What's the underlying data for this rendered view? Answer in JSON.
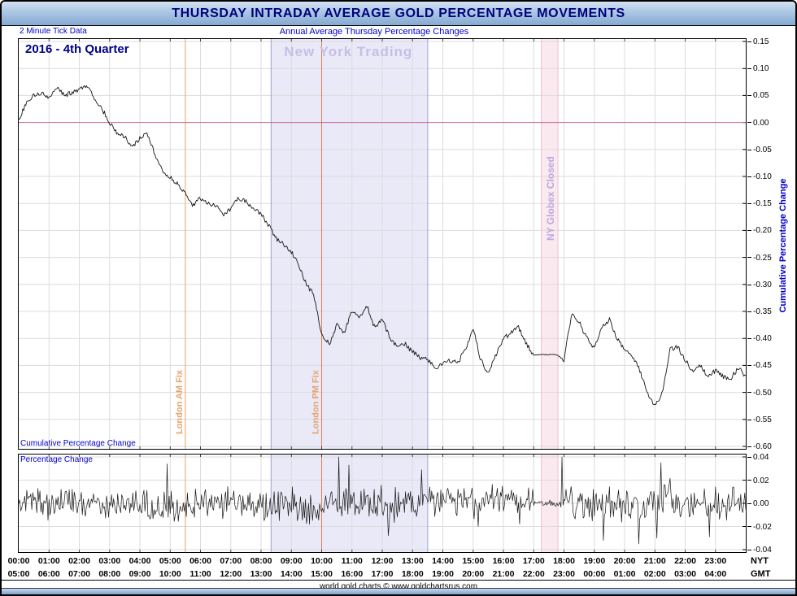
{
  "header": {
    "title": "THURSDAY INTRADAY AVERAGE GOLD PERCENTAGE MOVEMENTS",
    "left_note": "2 Minute Tick Data",
    "subtitle": "Annual Average Thursday Percentage Changes"
  },
  "main_chart": {
    "corner_label": "2016 - 4th Quarter",
    "bottom_label": "Cumulative Percentage Change",
    "right_axis_label": "Cumulative Percentage Change"
  },
  "bottom_chart": {
    "label": "Percentage Change"
  },
  "annotations": {
    "ny_trading": {
      "label": "New York Trading",
      "start_hour": 8.33,
      "end_hour": 13.5,
      "fill": "#e9e9f8",
      "edge": "#9aa2d8",
      "label_color": "#c6bfe6"
    },
    "london_am_fix": {
      "label": "London AM Fix",
      "hour": 5.5,
      "color": "#e8a269"
    },
    "london_pm_fix": {
      "label": "London PM Fix",
      "hour": 10.0,
      "color": "#dd8050"
    },
    "ny_globex_closed": {
      "label": "NY Globex Closed",
      "start_hour": 17.25,
      "end_hour": 17.8,
      "fill": "#fbe9f0",
      "edge": "#f0bcd0",
      "label_color": "#b9a9dd"
    }
  },
  "axes": {
    "nyt_caption": "NYT",
    "gmt_caption": "GMT",
    "nyt": [
      "00:00",
      "01:00",
      "02:00",
      "03:00",
      "04:00",
      "05:00",
      "06:00",
      "07:00",
      "08:00",
      "09:00",
      "10:00",
      "11:00",
      "12:00",
      "13:00",
      "14:00",
      "15:00",
      "16:00",
      "17:00",
      "18:00",
      "19:00",
      "20:00",
      "21:00",
      "22:00",
      "23:00"
    ],
    "gmt": [
      "05:00",
      "06:00",
      "07:00",
      "08:00",
      "09:00",
      "10:00",
      "11:00",
      "12:00",
      "13:00",
      "14:00",
      "15:00",
      "16:00",
      "17:00",
      "18:00",
      "19:00",
      "20:00",
      "21:00",
      "22:00",
      "23:00",
      "00:00",
      "01:00",
      "02:00",
      "03:00",
      "04:00"
    ]
  },
  "footer": {
    "text": "world gold charts © www.goldchartsrus.com"
  },
  "colors": {
    "accent_text": "#0000cc",
    "title_text": "#00007a",
    "zero_line": "#cc6699",
    "series": "#161616",
    "grid": "#dcdcdc"
  },
  "chart_data": [
    {
      "type": "line",
      "name": "cumulative_percentage_change",
      "title": "Cumulative Percentage Change",
      "x_unit": "hour_nyt",
      "x_start": 0,
      "x_end": 24,
      "x_step": 0.25,
      "ylim": [
        -0.6,
        0.15
      ],
      "yticks": [
        0.15,
        0.1,
        0.05,
        0.0,
        -0.05,
        -0.1,
        -0.15,
        -0.2,
        -0.25,
        -0.3,
        -0.35,
        -0.4,
        -0.45,
        -0.5,
        -0.55,
        -0.6
      ],
      "values": [
        0.005,
        0.035,
        0.05,
        0.055,
        0.045,
        0.065,
        0.05,
        0.055,
        0.06,
        0.07,
        0.045,
        0.025,
        0.0,
        -0.02,
        -0.025,
        -0.045,
        -0.03,
        -0.02,
        -0.06,
        -0.09,
        -0.1,
        -0.115,
        -0.13,
        -0.155,
        -0.14,
        -0.15,
        -0.155,
        -0.17,
        -0.16,
        -0.14,
        -0.145,
        -0.16,
        -0.17,
        -0.19,
        -0.215,
        -0.225,
        -0.24,
        -0.265,
        -0.3,
        -0.32,
        -0.395,
        -0.41,
        -0.375,
        -0.39,
        -0.35,
        -0.36,
        -0.34,
        -0.38,
        -0.365,
        -0.4,
        -0.415,
        -0.41,
        -0.425,
        -0.435,
        -0.44,
        -0.455,
        -0.445,
        -0.44,
        -0.445,
        -0.42,
        -0.38,
        -0.44,
        -0.465,
        -0.43,
        -0.4,
        -0.39,
        -0.38,
        -0.41,
        -0.43,
        -0.43,
        -0.43,
        -0.43,
        -0.44,
        -0.355,
        -0.37,
        -0.4,
        -0.42,
        -0.38,
        -0.365,
        -0.4,
        -0.42,
        -0.43,
        -0.46,
        -0.5,
        -0.525,
        -0.5,
        -0.42,
        -0.415,
        -0.44,
        -0.46,
        -0.45,
        -0.47,
        -0.46,
        -0.47,
        -0.475,
        -0.455,
        -0.47
      ]
    },
    {
      "type": "line",
      "name": "percentage_change",
      "title": "Percentage Change",
      "x_unit": "hour_nyt",
      "x_start": 0,
      "x_end": 24,
      "ylim": [
        -0.04,
        0.04
      ],
      "yticks": [
        0.04,
        0.02,
        0.0,
        -0.02,
        -0.04
      ],
      "spikes": [
        {
          "x": 4.9,
          "v": 0.034
        },
        {
          "x": 10.55,
          "v": 0.04
        },
        {
          "x": 10.9,
          "v": 0.033
        },
        {
          "x": 12.2,
          "v": -0.028
        },
        {
          "x": 13.3,
          "v": 0.029
        },
        {
          "x": 17.93,
          "v": 0.04
        },
        {
          "x": 19.3,
          "v": -0.032
        },
        {
          "x": 20.45,
          "v": -0.035
        },
        {
          "x": 21.2,
          "v": 0.035
        },
        {
          "x": 21.05,
          "v": -0.03
        },
        {
          "x": 22.8,
          "v": -0.029
        }
      ]
    }
  ]
}
